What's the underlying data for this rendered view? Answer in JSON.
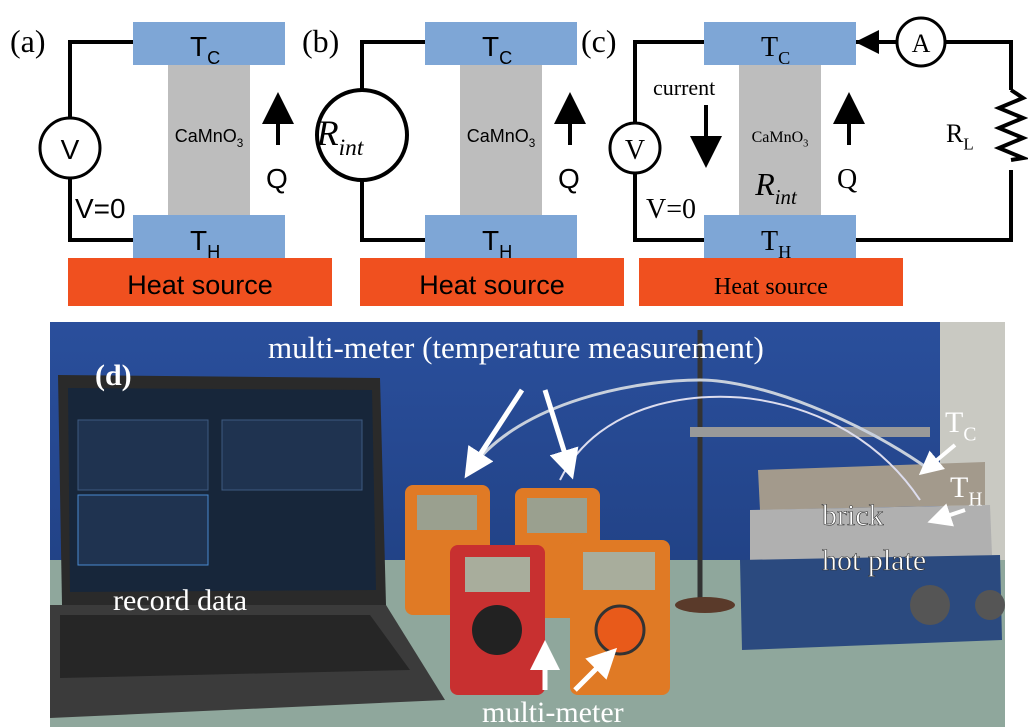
{
  "panels": [
    {
      "label": "(a)",
      "top": {
        "main": "T",
        "sub": "C"
      },
      "bottom": {
        "main": "T",
        "sub": "H"
      },
      "material": {
        "main": "CaMnO",
        "sub": "3"
      },
      "flow": "Q",
      "meter": "V",
      "note": "V=0",
      "source": "Heat source"
    },
    {
      "label": "(b)",
      "top": {
        "main": "T",
        "sub": "C"
      },
      "bottom": {
        "main": "T",
        "sub": "H"
      },
      "material": {
        "main": "CaMnO",
        "sub": "3"
      },
      "flow": "Q",
      "resistance": {
        "main": "R",
        "sub": "int"
      },
      "source": "Heat source"
    },
    {
      "label": "(c)",
      "top": {
        "main": "T",
        "sub": "C"
      },
      "bottom": {
        "main": "T",
        "sub": "H"
      },
      "material": {
        "main": "CaMnO",
        "sub": "3"
      },
      "flow": "Q",
      "meter": "V",
      "note": "V=0",
      "current": "current",
      "inner": {
        "main": "R",
        "sub": "int"
      },
      "ammeter": "A",
      "load": {
        "main": "R",
        "sub": "L"
      },
      "source": "Heat source"
    }
  ],
  "photo": {
    "label": "(d)",
    "top_label": "multi-meter (temperature measurement)",
    "laptop_label": "record data",
    "meter_label": "multi-meter",
    "cold": {
      "main": "T",
      "sub": "C"
    },
    "hot": {
      "main": "T",
      "sub": "H"
    },
    "brick": "brick",
    "plate": "hot plate"
  }
}
